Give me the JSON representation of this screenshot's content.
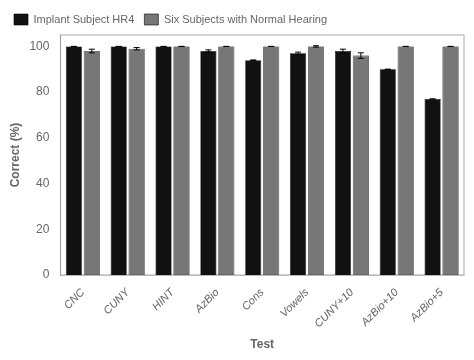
{
  "chart_data": {
    "type": "bar",
    "categories": [
      "CNC",
      "CUNY",
      "HINT",
      "AzBio",
      "Cons",
      "Vowels",
      "CUNY+10",
      "AzBio+10",
      "AzBio+5"
    ],
    "series": [
      {
        "name": "Implant Subject HR4",
        "color": "#111111",
        "values": [
          100,
          100,
          100,
          98,
          94,
          97,
          98,
          90,
          77
        ],
        "errors": [
          0,
          0,
          0,
          0.5,
          0,
          0.5,
          0.8,
          0,
          0
        ]
      },
      {
        "name": "Six Subjects with Normal Hearing",
        "color": "#777777",
        "values": [
          98,
          99,
          100,
          100,
          100,
          100,
          96,
          100,
          100
        ],
        "errors": [
          0.8,
          0.5,
          0,
          0,
          0,
          0.3,
          1.2,
          0,
          0
        ]
      }
    ],
    "xlabel": "Test",
    "ylabel": "Correct (%)",
    "ylim": [
      0,
      105
    ],
    "yticks": [
      0,
      20,
      40,
      60,
      80,
      100
    ],
    "grid": false,
    "legend": "upper left"
  }
}
